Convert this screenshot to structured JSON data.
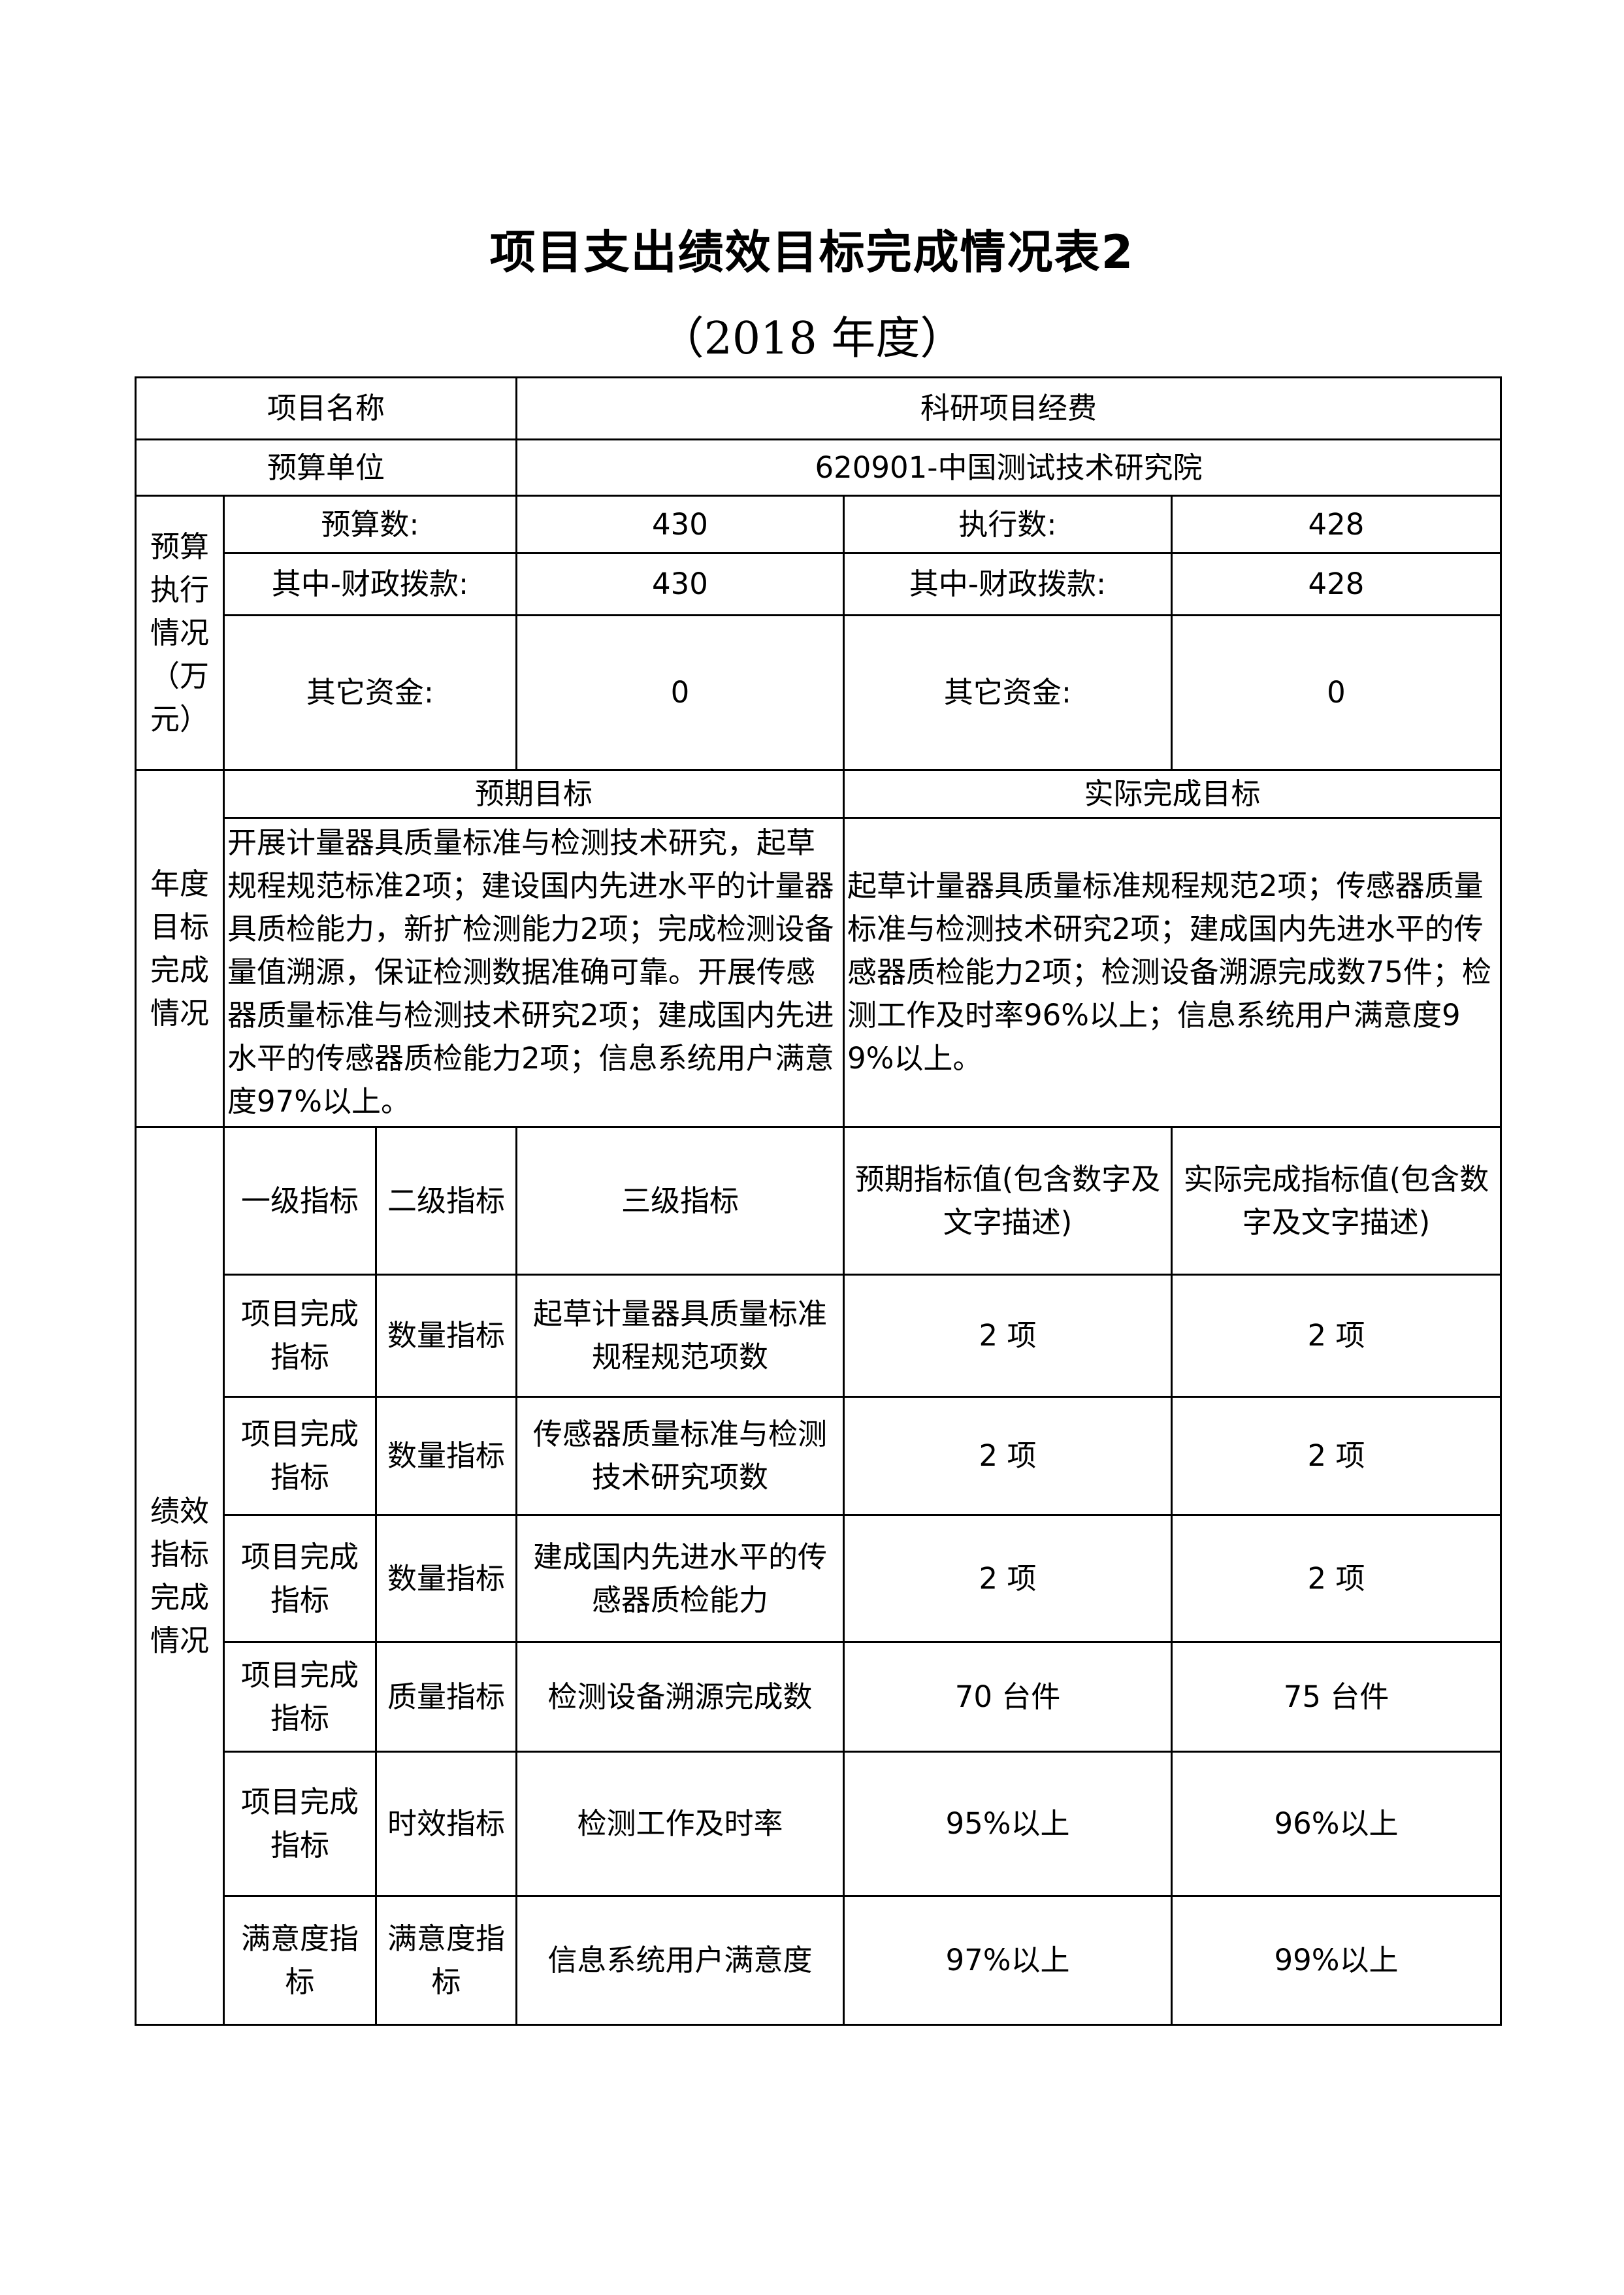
{
  "title": "项目支出绩效目标完成情况表2",
  "subtitle": "（2018 年度）",
  "project": {
    "label": "项目名称",
    "value": "科研项目经费"
  },
  "unit": {
    "label": "预算单位",
    "value": "620901-中国测试技术研究院"
  },
  "budget": {
    "section": "预算执行情况（万元）",
    "budget_label": "预算数:",
    "budget_value": "430",
    "exec_label": "执行数:",
    "exec_value": "428",
    "fiscal_label": "其中-财政拨款:",
    "fiscal_value": "430",
    "fiscal_exec_label": "其中-财政拨款:",
    "fiscal_exec_value": "428",
    "other_label": "其它资金:",
    "other_value": "0",
    "other_exec_label": "其它资金:",
    "other_exec_value": "0"
  },
  "annual": {
    "section": "年度目标完成情况",
    "expected_header": "预期目标",
    "actual_header": "实际完成目标",
    "expected_text": "开展计量器具质量标准与检测技术研究，起草规程规范标准2项；建设国内先进水平的计量器具质检能力，新扩检测能力2项；完成检测设备量值溯源，保证检测数据准确可靠。开展传感器质量标准与检测技术研究2项；建成国内先进水平的传感器质检能力2项；信息系统用户满意度97%以上。",
    "actual_text": "起草计量器具质量标准规程规范2项；传感器质量标准与检测技术研究2项；建成国内先进水平的传感器质检能力2项；检测设备溯源完成数75件；检测工作及时率96%以上；信息系统用户满意度99%以上。"
  },
  "indicators": {
    "section": "绩效指标完成情况",
    "headers": [
      "一级指标",
      "二级指标",
      "三级指标",
      "预期指标值(包含数字及文字描述)",
      "实际完成指标值(包含数字及文字描述)"
    ],
    "rows": [
      [
        "项目完成指标",
        "数量指标",
        "起草计量器具质量标准规程规范项数",
        "2 项",
        "2 项"
      ],
      [
        "项目完成指标",
        "数量指标",
        "传感器质量标准与检测技术研究项数",
        "2 项",
        "2 项"
      ],
      [
        "项目完成指标",
        "数量指标",
        "建成国内先进水平的传感器质检能力",
        "2 项",
        "2 项"
      ],
      [
        "项目完成指标",
        "质量指标",
        "检测设备溯源完成数",
        "70 台件",
        "75 台件"
      ],
      [
        "项目完成指标",
        "时效指标",
        "检测工作及时率",
        "95%以上",
        "96%以上"
      ],
      [
        "满意度指标",
        "满意度指标",
        "信息系统用户满意度",
        "97%以上",
        "99%以上"
      ]
    ]
  }
}
